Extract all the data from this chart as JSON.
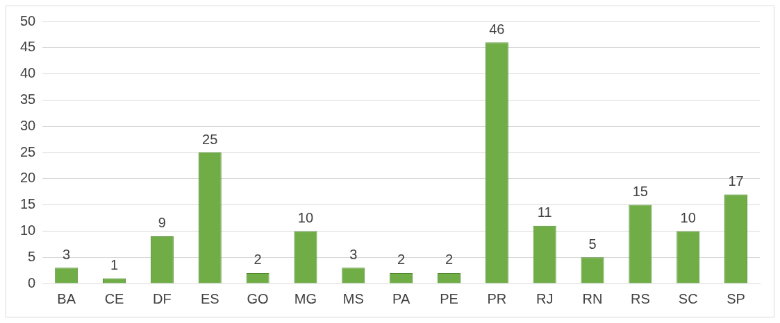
{
  "chart_data": {
    "type": "bar",
    "categories": [
      "BA",
      "CE",
      "DF",
      "ES",
      "GO",
      "MG",
      "MS",
      "PA",
      "PE",
      "PR",
      "RJ",
      "RN",
      "RS",
      "SC",
      "SP"
    ],
    "values": [
      3,
      1,
      9,
      25,
      2,
      10,
      3,
      2,
      2,
      46,
      11,
      5,
      15,
      10,
      17
    ],
    "color": "#70ad47",
    "ylim": [
      0,
      50
    ],
    "yticks": [
      0,
      5,
      10,
      15,
      20,
      25,
      30,
      35,
      40,
      45,
      50
    ],
    "grid": "y",
    "data_labels": true,
    "legend": false
  }
}
